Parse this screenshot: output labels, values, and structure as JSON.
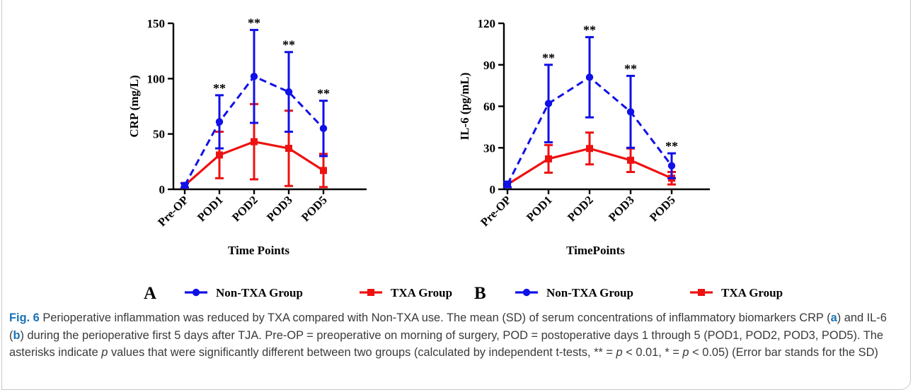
{
  "caption": {
    "label": "Fig. 6",
    "sentence1": " Perioperative inflammation was reduced by TXA compared with Non-TXA use. The mean (SD) of serum concentrations of inflammatory biomarkers CRP (",
    "letter_a": "a",
    "mid1": ") and IL-6 (",
    "letter_b": "b",
    "mid2": ") during the perioperative first 5 days after TJA. Pre-OP = preoperative on morning of surgery, POD = postoperative days 1 through 5 (POD1, POD2, POD3, POD5). The asterisks indicate ",
    "p_italic": "p",
    "mid3": " values that were significantly different between two groups (calculated by independent t-tests, ** = ",
    "p2": "p",
    "mid4": " < 0.01, * = ",
    "p3": "p",
    "tail": " < 0.05) (Error bar stands for the SD)"
  },
  "colors": {
    "non_txa": "#1010e8",
    "txa": "#ee1111",
    "axis": "#000000"
  },
  "chart_data": [
    {
      "type": "line",
      "panel_label": "A",
      "categories": [
        "Pre-OP",
        "POD1",
        "POD2",
        "POD3",
        "POD5"
      ],
      "xlabel": "Time Points",
      "ylabel": "CRP (mg/L)",
      "ylim": [
        0,
        150
      ],
      "yticks": [
        0,
        50,
        100,
        150
      ],
      "grid": false,
      "legend_position": "bottom",
      "series": [
        {
          "name": "Non-TXA Group",
          "marker": "circle",
          "line_style": "dashed",
          "values": [
            3.5,
            61,
            102,
            88,
            55
          ],
          "sd": [
            2,
            24,
            42,
            36,
            25
          ]
        },
        {
          "name": "TXA Group",
          "marker": "square",
          "line_style": "solid",
          "values": [
            3.5,
            31,
            43,
            37,
            17
          ],
          "sd": [
            2,
            21,
            34,
            34,
            15
          ]
        }
      ],
      "annotations": [
        {
          "category": "POD1",
          "text": "**"
        },
        {
          "category": "POD2",
          "text": "**"
        },
        {
          "category": "POD3",
          "text": "**"
        },
        {
          "category": "POD5",
          "text": "**"
        }
      ]
    },
    {
      "type": "line",
      "panel_label": "B",
      "categories": [
        "Pre-OP",
        "POD1",
        "POD2",
        "POD3",
        "POD5"
      ],
      "xlabel": "TimePoints",
      "ylabel": "IL-6 (pg/mL)",
      "ylim": [
        0,
        120
      ],
      "yticks": [
        0,
        30,
        60,
        90,
        120
      ],
      "grid": false,
      "legend_position": "bottom",
      "series": [
        {
          "name": "Non-TXA Group",
          "marker": "circle",
          "line_style": "dashed",
          "values": [
            3.5,
            62,
            81,
            56,
            17
          ],
          "sd": [
            2,
            28,
            29,
            26,
            9
          ]
        },
        {
          "name": "TXA Group",
          "marker": "square",
          "line_style": "solid",
          "values": [
            3.5,
            22,
            29.5,
            21,
            8
          ],
          "sd": [
            2,
            10,
            11.5,
            8.5,
            4.5
          ]
        }
      ],
      "annotations": [
        {
          "category": "POD1",
          "text": "**"
        },
        {
          "category": "POD2",
          "text": "**"
        },
        {
          "category": "POD3",
          "text": "**"
        },
        {
          "category": "POD5",
          "text": "**"
        }
      ]
    }
  ]
}
